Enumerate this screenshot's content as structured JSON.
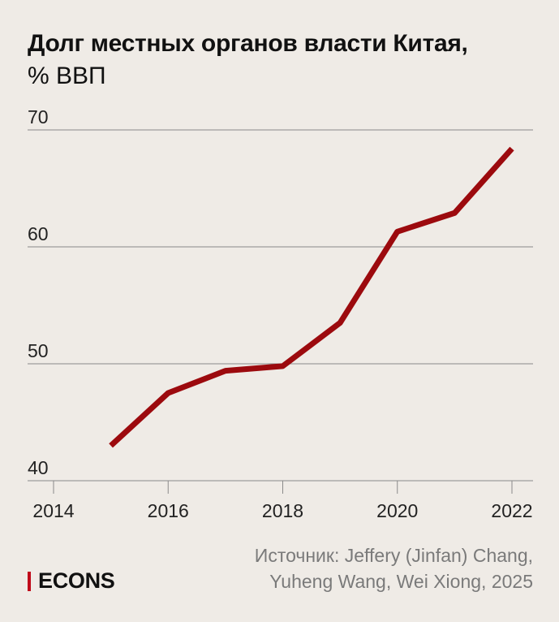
{
  "header": {
    "title": "Долг местных органов власти Китая,",
    "subtitle": "% ВВП"
  },
  "footer": {
    "source_line1": "Источник: Jeffery (Jinfan) Chang,",
    "source_line2": "Yuheng Wang, Wei Xiong, 2025",
    "logo_text": "ECONS"
  },
  "colors": {
    "line": "#9c0a0e",
    "grid": "#8a8a8a",
    "axis_text": "#222222",
    "logo_accent": "#c0091a"
  },
  "chart_data": {
    "type": "line",
    "title": "Долг местных органов власти Китая, % ВВП",
    "xlabel": "",
    "ylabel": "",
    "xlim": [
      2014,
      2022
    ],
    "ylim": [
      40,
      70
    ],
    "x_ticks": [
      2014,
      2016,
      2018,
      2020,
      2022
    ],
    "y_ticks": [
      40,
      50,
      60,
      70
    ],
    "grid": "horizontal",
    "series": [
      {
        "x": [
          2015,
          2016,
          2017,
          2018,
          2019,
          2020,
          2021,
          2022
        ],
        "values": [
          43.0,
          47.5,
          49.4,
          49.8,
          53.5,
          61.3,
          62.9,
          68.4
        ]
      }
    ]
  }
}
